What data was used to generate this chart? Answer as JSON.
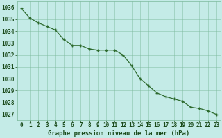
{
  "x": [
    0,
    1,
    2,
    3,
    4,
    5,
    6,
    7,
    8,
    9,
    10,
    11,
    12,
    13,
    14,
    15,
    16,
    17,
    18,
    19,
    20,
    21,
    22,
    23
  ],
  "y": [
    1035.9,
    1035.1,
    1034.7,
    1034.4,
    1034.1,
    1033.3,
    1032.8,
    1032.8,
    1032.5,
    1032.4,
    1032.4,
    1032.4,
    1032.0,
    1031.1,
    1030.0,
    1029.4,
    1028.8,
    1028.5,
    1028.3,
    1028.1,
    1027.6,
    1027.5,
    1027.3,
    1027.0
  ],
  "line_color": "#2d6a2d",
  "marker_color": "#2d6a2d",
  "bg_color": "#c4ebe7",
  "grid_color": "#7ab89a",
  "label_color": "#1a4a1a",
  "xlabel": "Graphe pression niveau de la mer (hPa)",
  "ylim": [
    1026.5,
    1036.5
  ],
  "yticks": [
    1027,
    1028,
    1029,
    1030,
    1031,
    1032,
    1033,
    1034,
    1035,
    1036
  ],
  "xtick_labels": [
    "0",
    "1",
    "2",
    "3",
    "4",
    "5",
    "6",
    "7",
    "8",
    "9",
    "10",
    "11",
    "12",
    "13",
    "14",
    "15",
    "16",
    "17",
    "18",
    "19",
    "20",
    "21",
    "22",
    "23"
  ],
  "tick_fontsize": 5.5,
  "xlabel_fontsize": 6.5,
  "marker_size": 3,
  "linewidth": 0.9
}
